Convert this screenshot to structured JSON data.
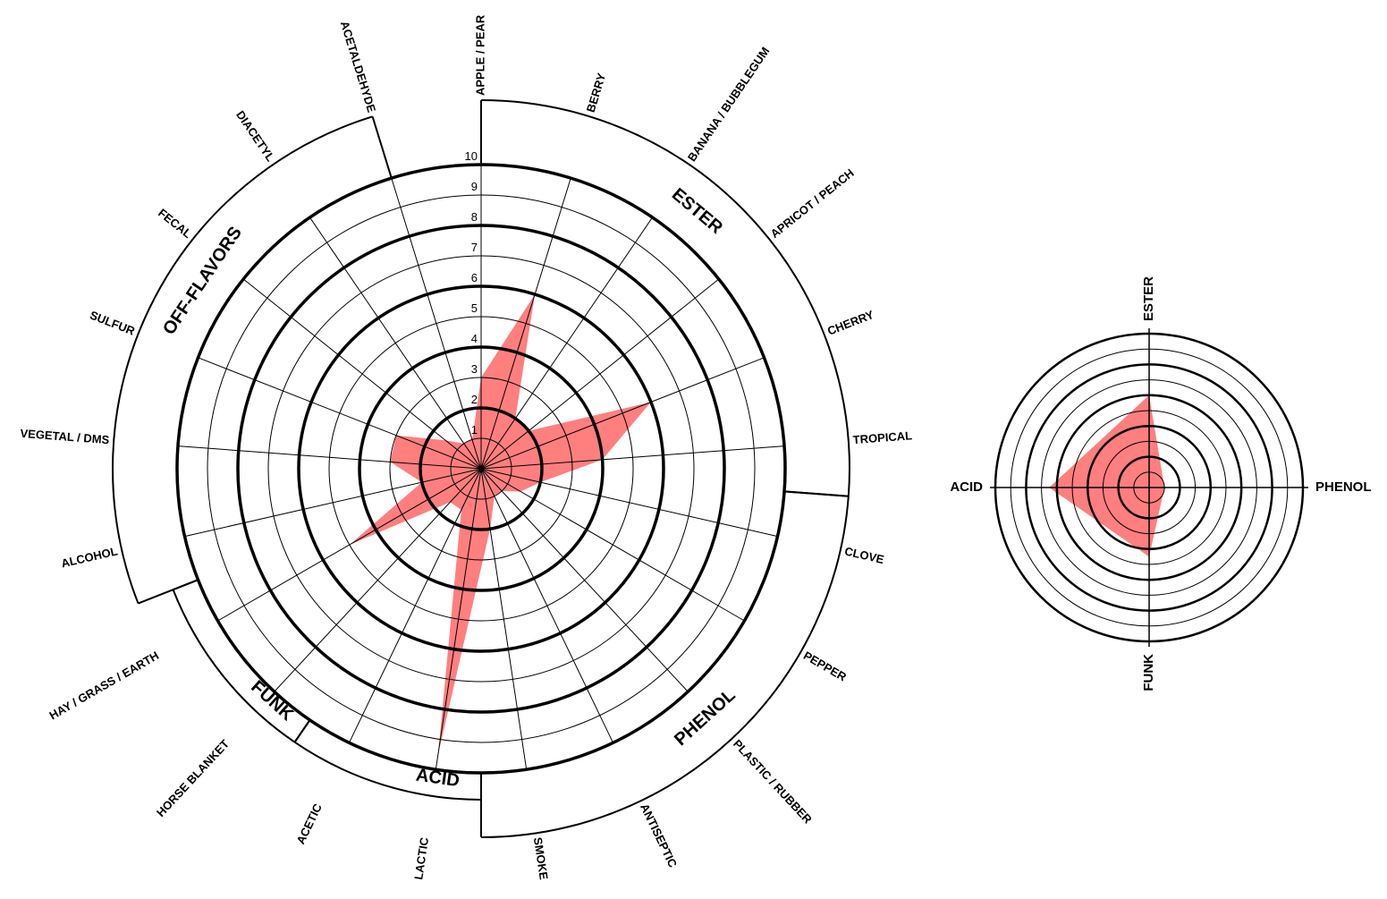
{
  "chart_data": [
    {
      "type": "radar",
      "ticks": [
        "1",
        "2",
        "3",
        "4",
        "5",
        "6",
        "7",
        "8",
        "9",
        "10"
      ],
      "rmax": 10,
      "axes": [
        "APPLE / PEAR",
        "BERRY",
        "BANANA / BUBBLEGUM",
        "APRICOT / PEACH",
        "CHERRY",
        "TROPICAL",
        "CLOVE",
        "PEPPER",
        "PLASTIC / RUBBER",
        "ANTISEPTIC",
        "SMOKE",
        "LACTIC",
        "ACETIC",
        "HORSE BLANKET",
        "HAY / GRASS / EARTH",
        "ALCOHOL",
        "VEGETAL / DMS",
        "SULFUR",
        "FECAL",
        "DIACETYL",
        "ACETALDEHYDE"
      ],
      "values": [
        3,
        6,
        2,
        2,
        6,
        4,
        2,
        1.5,
        1,
        1,
        2,
        9.5,
        1.5,
        1.5,
        5,
        2,
        3,
        3,
        1.5,
        1,
        1
      ],
      "groups": [
        {
          "label": "ESTER",
          "axes": [
            0,
            1,
            2,
            3,
            4,
            5
          ]
        },
        {
          "label": "PHENOL",
          "axes": [
            6,
            7,
            8,
            9,
            10
          ]
        },
        {
          "label": "ACID",
          "axes": [
            11,
            12
          ]
        },
        {
          "label": "FUNK",
          "axes": [
            13,
            14
          ]
        },
        {
          "label": "OFF-FLAVORS",
          "axes": [
            15,
            16,
            17,
            18,
            19,
            20
          ]
        }
      ],
      "fill_color": "#ff7f7f"
    },
    {
      "type": "radar",
      "axes": [
        "ESTER",
        "PHENOL",
        "FUNK",
        "ACID"
      ],
      "values": [
        6,
        1,
        4.5,
        6.5
      ],
      "rmax": 10,
      "fill_color": "#ff7f7f"
    }
  ]
}
